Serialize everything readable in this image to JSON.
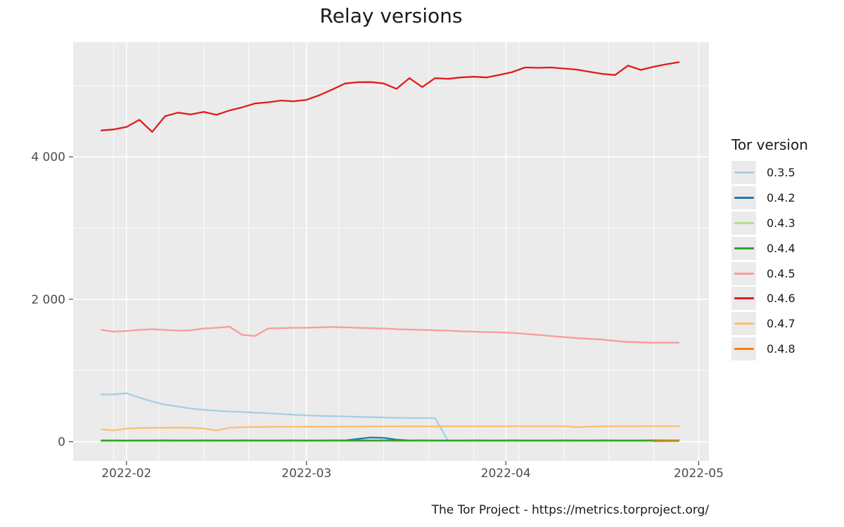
{
  "chart_data": {
    "type": "line",
    "title": "Relay versions",
    "legend_title": "Tor version",
    "caption": "The Tor Project - https://metrics.torproject.org/",
    "grid": "on",
    "legend_position": "right",
    "panel_bg": "#ebebeb",
    "grid_color": "#ffffff",
    "tick_color": "#333333",
    "axis_text_color": "#4d4d4d",
    "x_start_date": "2022-01-28",
    "x_unit": "days since 2022-01-28",
    "x_days": [
      0,
      2,
      4,
      6,
      8,
      10,
      12,
      14,
      16,
      18,
      20,
      22,
      24,
      26,
      28,
      30,
      32,
      34,
      36,
      38,
      40,
      42,
      44,
      46,
      48,
      50,
      52,
      54,
      56,
      58,
      60,
      62,
      64,
      66,
      68,
      70,
      72,
      74,
      76,
      78,
      80,
      82,
      84,
      86,
      88,
      90
    ],
    "x_domain_days": [
      -4.3,
      94.6
    ],
    "y_domain": [
      -270,
      5610
    ],
    "x_ticks": [
      {
        "label": "2022-02",
        "day": 4
      },
      {
        "label": "2022-03",
        "day": 32
      },
      {
        "label": "2022-04",
        "day": 63
      },
      {
        "label": "2022-05",
        "day": 93
      }
    ],
    "x_minor_days": [
      2,
      9,
      16,
      23,
      30,
      37,
      44,
      51,
      58,
      65,
      72,
      79,
      86
    ],
    "y_ticks": [
      {
        "label": "0",
        "value": 0
      },
      {
        "label": "2 000",
        "value": 2000
      },
      {
        "label": "4 000",
        "value": 4000
      }
    ],
    "y_minor_values": [
      1000,
      3000,
      5000
    ],
    "series": [
      {
        "name": "0.3.5",
        "color": "#a6cee3",
        "values": [
          660,
          665,
          680,
          620,
          565,
          520,
          495,
          465,
          448,
          435,
          425,
          418,
          408,
          400,
          390,
          378,
          370,
          362,
          358,
          355,
          350,
          345,
          340,
          336,
          334,
          333,
          332,
          15,
          14,
          14,
          13,
          13,
          13,
          13,
          12,
          12,
          12,
          12,
          12,
          12,
          12,
          12,
          12,
          12,
          12,
          12
        ]
      },
      {
        "name": "0.4.2",
        "color": "#1f78b4",
        "values": [
          12,
          12,
          11,
          12,
          13,
          12,
          12,
          13,
          12,
          12,
          13,
          14,
          13,
          13,
          14,
          13,
          14,
          15,
          16,
          18,
          40,
          60,
          55,
          30,
          18,
          14,
          13,
          13,
          14,
          13,
          13,
          14,
          13,
          13,
          14,
          13,
          13,
          14,
          13,
          13,
          14,
          13,
          13,
          14,
          13,
          14
        ]
      },
      {
        "name": "0.4.3",
        "color": "#b2df8a",
        "values": [
          6,
          6,
          6,
          6,
          6,
          6,
          6,
          6,
          6,
          6,
          6,
          6,
          6,
          6,
          6,
          6,
          6,
          6,
          6,
          6,
          6,
          6,
          6,
          6,
          6,
          6,
          6,
          6,
          6,
          6,
          6,
          6,
          6,
          6,
          6,
          6,
          6,
          6,
          6,
          6,
          6,
          6,
          6,
          6,
          6,
          6
        ]
      },
      {
        "name": "0.4.4",
        "color": "#33a02c",
        "values": [
          18,
          18,
          17,
          18,
          18,
          19,
          18,
          18,
          19,
          18,
          18,
          19,
          18,
          18,
          18,
          19,
          18,
          18,
          19,
          18,
          18,
          18,
          19,
          18,
          18,
          19,
          18,
          18,
          18,
          19,
          18,
          18,
          19,
          18,
          18,
          18,
          19,
          18,
          18,
          19,
          18,
          18,
          18,
          19,
          18,
          18
        ]
      },
      {
        "name": "0.4.5",
        "color": "#fb9a99",
        "values": [
          1570,
          1545,
          1555,
          1570,
          1580,
          1570,
          1560,
          1565,
          1590,
          1600,
          1615,
          1500,
          1485,
          1590,
          1595,
          1600,
          1600,
          1605,
          1610,
          1605,
          1600,
          1595,
          1590,
          1580,
          1575,
          1570,
          1565,
          1560,
          1550,
          1545,
          1540,
          1535,
          1530,
          1515,
          1500,
          1485,
          1470,
          1455,
          1445,
          1435,
          1415,
          1400,
          1395,
          1390,
          1390,
          1390
        ]
      },
      {
        "name": "0.4.6",
        "color": "#e31a1c",
        "values": [
          4370,
          4385,
          4420,
          4520,
          4350,
          4570,
          4620,
          4595,
          4630,
          4590,
          4650,
          4695,
          4750,
          4765,
          4790,
          4780,
          4800,
          4865,
          4945,
          5030,
          5048,
          5050,
          5030,
          4955,
          5105,
          4980,
          5105,
          5095,
          5115,
          5125,
          5115,
          5150,
          5190,
          5255,
          5250,
          5255,
          5240,
          5225,
          5195,
          5165,
          5148,
          5280,
          5220,
          5265,
          5300,
          5330
        ]
      },
      {
        "name": "0.4.7",
        "color": "#fdbf6f",
        "values": [
          175,
          158,
          185,
          192,
          195,
          196,
          197,
          196,
          185,
          158,
          195,
          205,
          207,
          208,
          209,
          210,
          211,
          212,
          212,
          213,
          213,
          214,
          214,
          215,
          215,
          215,
          215,
          216,
          216,
          216,
          216,
          216,
          217,
          217,
          217,
          217,
          217,
          205,
          212,
          216,
          217,
          217,
          217,
          218,
          218,
          218
        ]
      },
      {
        "name": "0.4.8",
        "color": "#ff7f00",
        "values": [
          null,
          null,
          null,
          null,
          null,
          null,
          null,
          null,
          null,
          null,
          null,
          null,
          null,
          null,
          null,
          null,
          null,
          null,
          null,
          null,
          null,
          null,
          null,
          null,
          null,
          null,
          null,
          null,
          null,
          null,
          null,
          null,
          null,
          null,
          null,
          null,
          null,
          null,
          null,
          null,
          null,
          null,
          null,
          6,
          9,
          11
        ]
      }
    ]
  }
}
